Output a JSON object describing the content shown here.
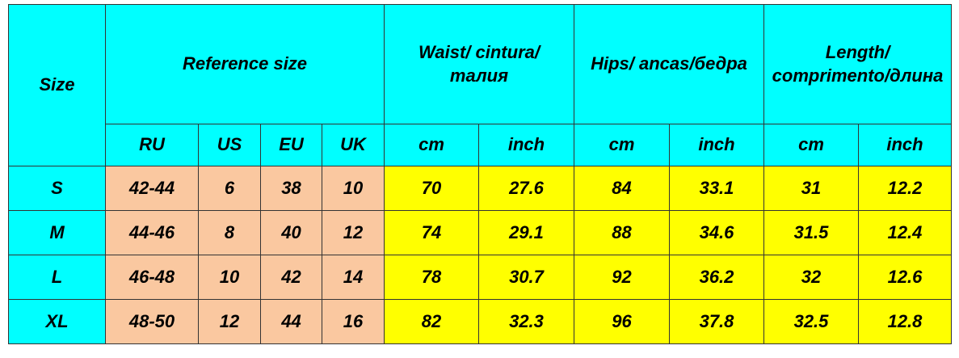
{
  "table": {
    "header_top": [
      "Size",
      "Reference size",
      "Waist/ cintura/талия",
      "Hips/ ancas/бедра",
      "Length/ comprimento/длина"
    ],
    "subheader": [
      "RU",
      "US",
      "EU",
      "UK",
      "cm",
      "inch",
      "cm",
      "inch",
      "cm",
      "inch"
    ],
    "rows": [
      [
        "S",
        "42-44",
        "6",
        "38",
        "10",
        "70",
        "27.6",
        "84",
        "33.1",
        "31",
        "12.2"
      ],
      [
        "M",
        "44-46",
        "8",
        "40",
        "12",
        "74",
        "29.1",
        "88",
        "34.6",
        "31.5",
        "12.4"
      ],
      [
        "L",
        "46-48",
        "10",
        "42",
        "14",
        "78",
        "30.7",
        "92",
        "36.2",
        "32",
        "12.6"
      ],
      [
        "XL",
        "48-50",
        "12",
        "44",
        "16",
        "82",
        "32.3",
        "96",
        "37.8",
        "32.5",
        "12.8"
      ]
    ]
  }
}
